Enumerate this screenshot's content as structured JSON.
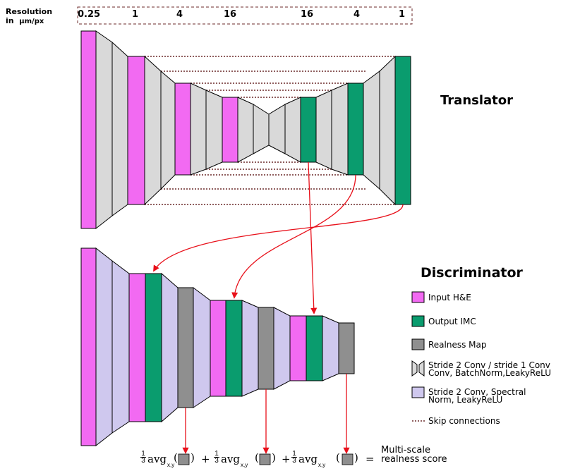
{
  "resolution": {
    "label_line1": "Resolution",
    "label_line2": "in",
    "unit": "µm/px",
    "values": [
      "0.25",
      "1",
      "4",
      "16",
      "16",
      "4",
      "1"
    ]
  },
  "titles": {
    "translator": "Translator",
    "discriminator": "Discriminator"
  },
  "legend": {
    "input": "Input H&E",
    "output": "Output IMC",
    "realness": "Realness Map",
    "stride_line1": "Stride 2 Conv / stride 1 Conv",
    "stride_line2": "Conv, BatchNorm,LeakyReLU",
    "spectral_line1": "Stride 2 Conv, Spectral",
    "spectral_line2": "Norm, LeakyReLU",
    "skip": "Skip connections"
  },
  "formula": {
    "frac_num": "1",
    "frac_den": "3",
    "avg": "avg",
    "sub": "x,y",
    "plus": "+",
    "equals": "=",
    "paren_open": "(",
    "paren_close": ")",
    "score_line1": "Multi-scale",
    "score_line2": "realness score"
  },
  "colors": {
    "input": "#f26af2",
    "output": "#0a9c6e",
    "realness": "#8f8f8f",
    "conv": "#d9d9d9",
    "spectral": "#cfc8ee",
    "arrow": "#e8101a",
    "skip": "#6b2a2a"
  }
}
